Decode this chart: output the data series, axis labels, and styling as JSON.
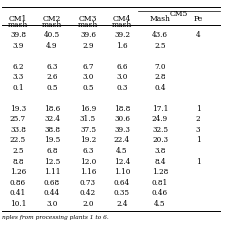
{
  "cm5_header": "CM5",
  "col_labels_line1": [
    "CM1",
    "CM2",
    "CM3",
    "CM4",
    "Mash",
    "Pe"
  ],
  "col_labels_line2": [
    "mash",
    "mash",
    "mash",
    "mash",
    "",
    ""
  ],
  "rows": [
    [
      "39.8",
      "40.5",
      "39.6",
      "39.2",
      "43.6",
      "4"
    ],
    [
      "3.9",
      "4.9",
      "2.9",
      "1.6",
      "2.5",
      ""
    ],
    [
      "",
      "",
      "",
      "",
      "",
      ""
    ],
    [
      "6.2",
      "6.3",
      "6.7",
      "6.6",
      "7.0",
      ""
    ],
    [
      "3.3",
      "2.6",
      "3.0",
      "3.0",
      "2.8",
      ""
    ],
    [
      "0.1",
      "0.5",
      "0.5",
      "0.3",
      "0.4",
      ""
    ],
    [
      "",
      "",
      "",
      "",
      "",
      ""
    ],
    [
      "19.3",
      "18.6",
      "16.9",
      "18.8",
      "17.1",
      "1"
    ],
    [
      "25.7",
      "32.4",
      "31.5",
      "30.6",
      "24.9",
      "2"
    ],
    [
      "33.8",
      "38.8",
      "37.5",
      "39.3",
      "32.5",
      "3"
    ],
    [
      "22.5",
      "19.5",
      "19.2",
      "22.4",
      "20.3",
      "1"
    ],
    [
      "2.5",
      "6.8",
      "6.3",
      "4.5",
      "3.8",
      ""
    ],
    [
      "8.8",
      "12.5",
      "12.0",
      "12.4",
      "8.4",
      "1"
    ],
    [
      "1.26",
      "1.11",
      "1.16",
      "1.10",
      "1.28",
      ""
    ],
    [
      "0.86",
      "0.68",
      "0.73",
      "0.64",
      "0.81",
      ""
    ],
    [
      "0.41",
      "0.44",
      "0.42",
      "0.35",
      "0.46",
      ""
    ],
    [
      "10.1",
      "3.0",
      "2.0",
      "2.4",
      "4.5",
      ""
    ]
  ],
  "footer": "nples from processing plants 1 to 6.",
  "bg_color": "#ffffff",
  "line_color": "#000000",
  "text_color": "#000000",
  "font_size": 5.2,
  "header_font_size": 5.5
}
